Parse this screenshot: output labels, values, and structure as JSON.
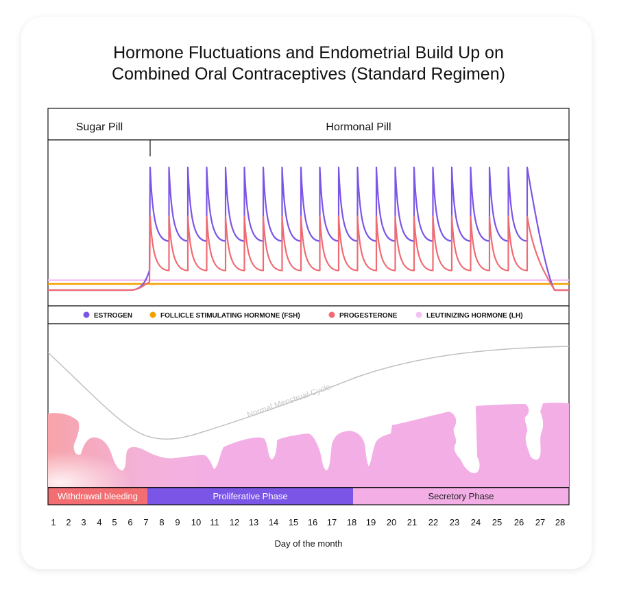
{
  "colors": {
    "estrogen": "#7b55e6",
    "fsh": "#f2a100",
    "progesterone": "#f06a72",
    "lh": "#f3c0f0",
    "withdrawal": "#f26e72",
    "proliferative": "#7b55e6",
    "secretory": "#f3aee6",
    "endometrium": "#f3aee6",
    "normal_curve": "#bbbbbb"
  },
  "chart_data": {
    "type": "line",
    "title": "Hormone Fluctuations and Endometrial Build Up on Combined Oral Contraceptives (Standard Regimen)",
    "title_lines": [
      "Hormone Fluctuations and Endometrial Build Up on",
      "Combined Oral Contraceptives (Standard Regimen)"
    ],
    "xlabel": "Day of the month",
    "x": [
      1,
      2,
      3,
      4,
      5,
      6,
      7,
      8,
      9,
      10,
      11,
      12,
      13,
      14,
      15,
      16,
      17,
      18,
      19,
      20,
      21,
      22,
      23,
      24,
      25,
      26,
      27,
      28
    ],
    "pill_periods": [
      {
        "label": "Sugar Pill",
        "start_day": 1,
        "end_day": 7
      },
      {
        "label": "Hormonal Pill",
        "start_day": 7,
        "end_day": 28
      }
    ],
    "units": "relative level (0 = baseline, 1 = daily peak)",
    "series": [
      {
        "name": "ESTROGEN",
        "key": "estrogen",
        "baseline": 0.0,
        "pulse_peak": 1.0,
        "pulse_trough": 0.4,
        "pulses_from_day": 7,
        "pulses_to_day": 26
      },
      {
        "name": "FOLLICLE STIMULATING HORMONE (FSH)",
        "key": "fsh",
        "constant": 0.05
      },
      {
        "name": "PROGESTERONE",
        "key": "progesterone",
        "baseline": 0.0,
        "pulse_peak": 0.6,
        "pulse_trough": 0.16,
        "pulses_from_day": 7,
        "pulses_to_day": 26
      },
      {
        "name": "LEUTINIZING HORMONE (LH)",
        "key": "lh",
        "constant": 0.08
      }
    ],
    "endometrium_annotation": "Normal Menstrual Cycle",
    "phases": [
      {
        "label": "Withdrawal bleeding",
        "start_day": 1,
        "end_day": 7,
        "key": "withdrawal"
      },
      {
        "label": "Proliferative Phase",
        "start_day": 7,
        "end_day": 18,
        "key": "proliferative"
      },
      {
        "label": "Secretory Phase",
        "start_day": 18,
        "end_day": 28,
        "key": "secretory"
      }
    ]
  }
}
